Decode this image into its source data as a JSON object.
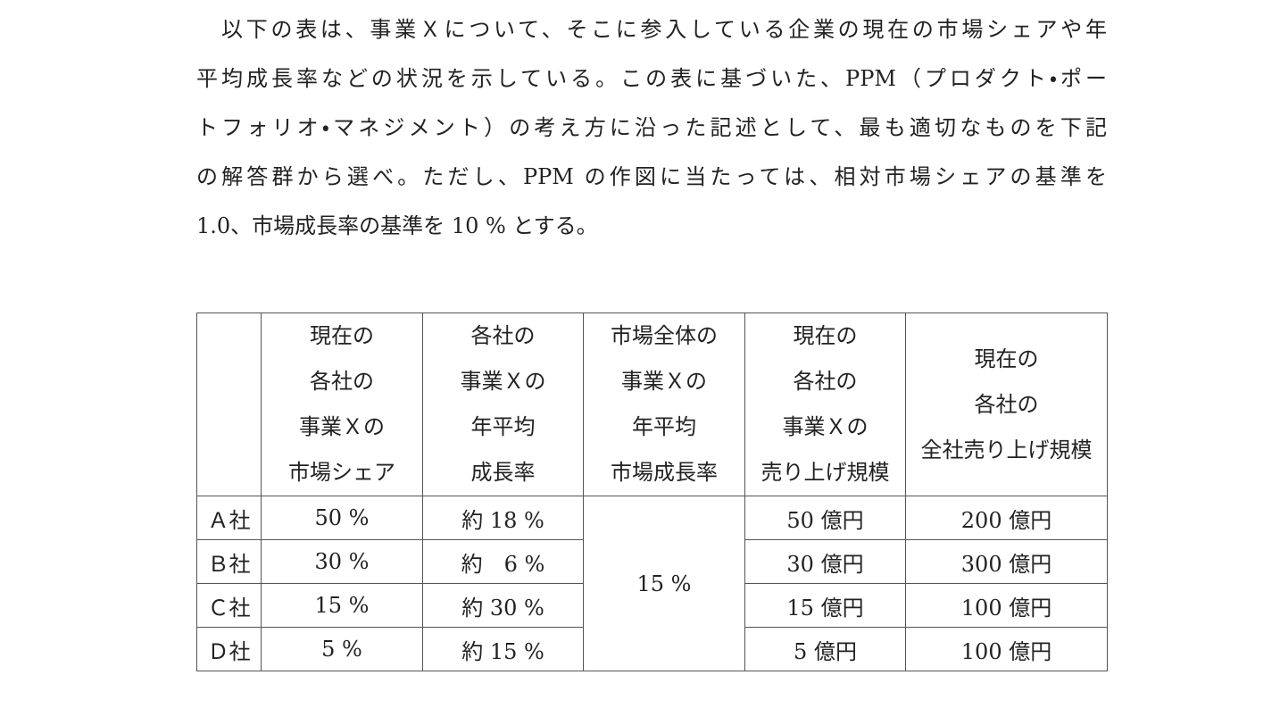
{
  "paragraph": {
    "lines": [
      "以下の表は、事業Ｘについて、そこに参入している企業の現在の市場シェアや年",
      "平均成長率などの状況を示している。この表に基づいた、PPM（プロダクト・ポー",
      "トフォリオ・マネジメント）の考え方に沿った記述として、最も適切なものを下記",
      "の解答群から選べ。ただし、PPM の作図に当たっては、相対市場シェアの基準を",
      "1.0、市場成長率の基準を 10 % とする。"
    ]
  },
  "table": {
    "header": [
      [],
      [
        "現在の",
        "各社の",
        "事業Ｘの",
        "市場シェア"
      ],
      [
        "各社の",
        "事業Ｘの",
        "年平均",
        "成長率"
      ],
      [
        "市場全体の",
        "事業Ｘの",
        "年平均",
        "市場成長率"
      ],
      [
        "現在の",
        "各社の",
        "事業Ｘの",
        "売り上げ規模"
      ],
      [
        "現在の",
        "各社の",
        "全社売り上げ規模"
      ]
    ],
    "rows": [
      [
        "Ａ社",
        "50 %",
        "約 18 %",
        "50 億円",
        "200 億円"
      ],
      [
        "Ｂ社",
        "30 %",
        "約　6 %",
        "30 億円",
        "300 億円"
      ],
      [
        "Ｃ社",
        "15 %",
        "約 30 %",
        "15 億円",
        "100 億円"
      ],
      [
        "Ｄ社",
        "5 %",
        "約 15 %",
        "5 億円",
        "100 億円"
      ]
    ],
    "market_growth": "15 %"
  }
}
